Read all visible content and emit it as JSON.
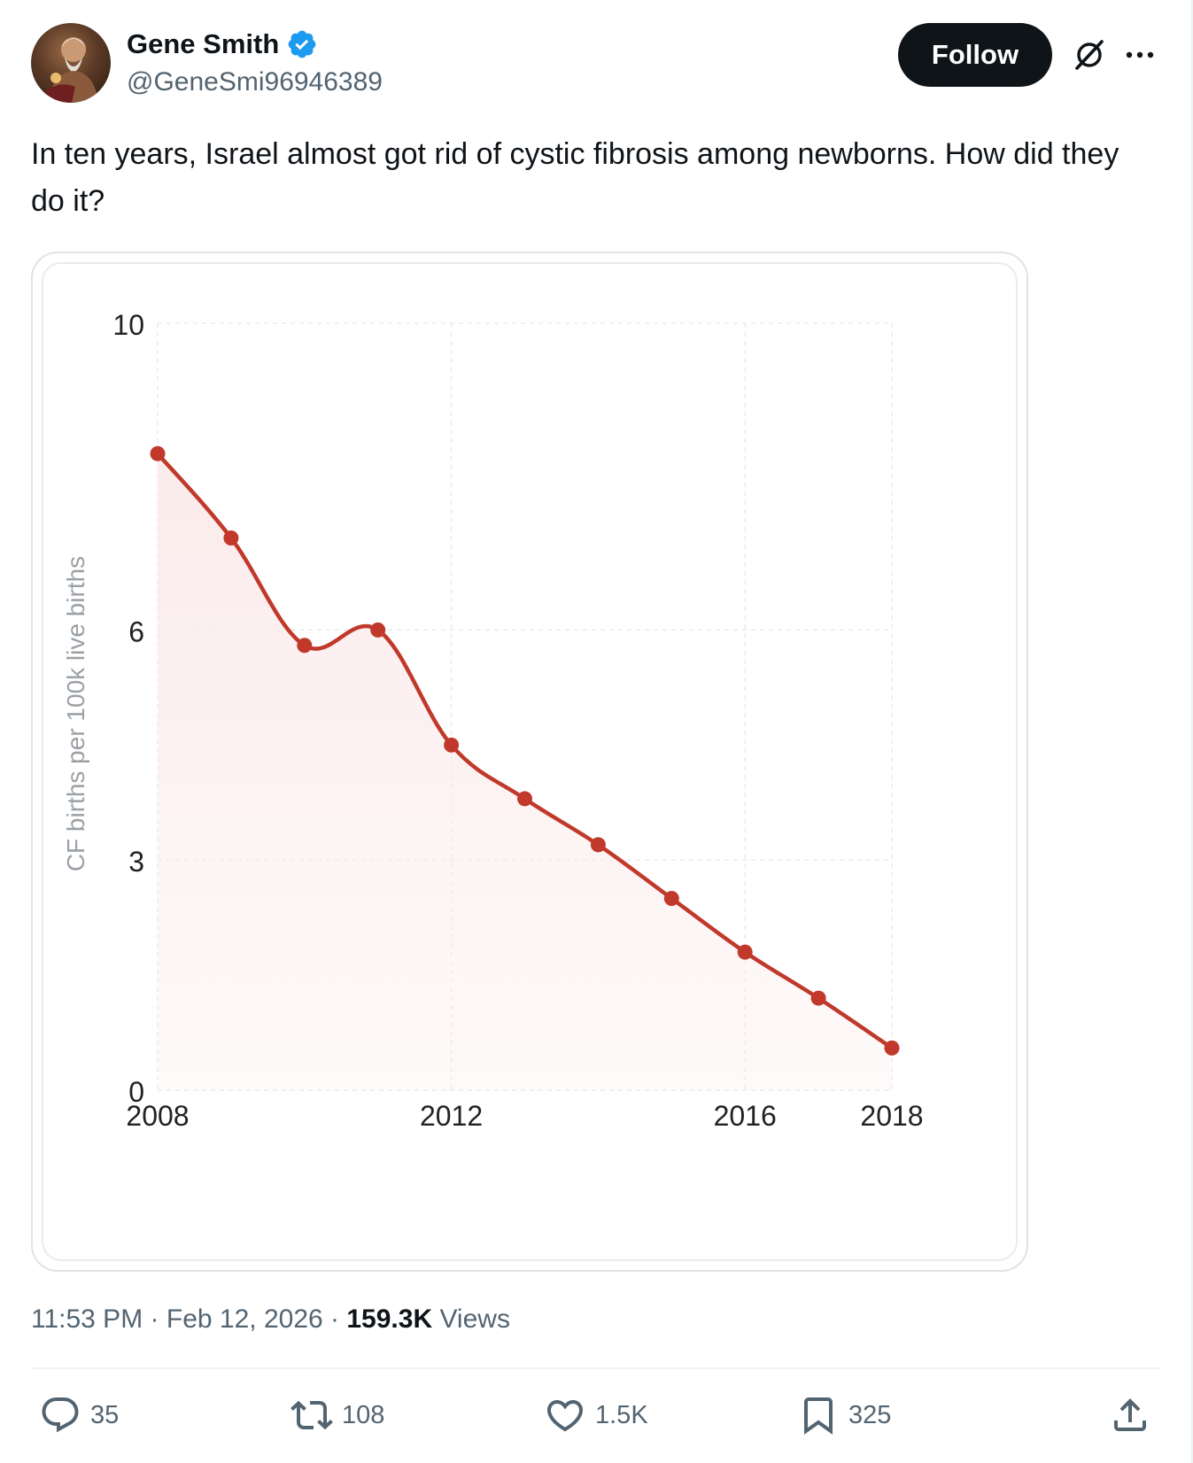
{
  "author": {
    "name": "Gene Smith",
    "handle": "@GeneSmi96946389",
    "verified": true
  },
  "header": {
    "follow_label": "Follow"
  },
  "tweet": {
    "text": "In ten years, Israel almost got rid of cystic fibrosis among newborns. How did they do it?"
  },
  "meta": {
    "time": "11:53 PM",
    "separator": "·",
    "date": "Feb 12, 2026",
    "views_count": "159.3K",
    "views_label": "Views"
  },
  "actions": {
    "replies": "35",
    "reposts": "108",
    "likes": "1.5K",
    "bookmarks": "325"
  },
  "colors": {
    "line": "#c0392b",
    "fill": "#fbeaea",
    "accent": "#1d9bf0",
    "grid": "#e6e6e6"
  },
  "icons": [
    "verified-badge-icon",
    "grok-icon",
    "more-icon",
    "reply-icon",
    "repost-icon",
    "like-icon",
    "bookmark-icon",
    "share-icon"
  ],
  "chart_data": {
    "type": "area",
    "title": "",
    "xlabel": "",
    "ylabel": "CF births per 100k live births",
    "x": [
      2008,
      2009,
      2010,
      2011,
      2012,
      2013,
      2014,
      2015,
      2016,
      2017,
      2018
    ],
    "values": [
      8.3,
      7.2,
      5.8,
      6.0,
      4.5,
      3.8,
      3.2,
      2.5,
      1.8,
      1.2,
      0.55
    ],
    "xlim": [
      2008,
      2018
    ],
    "ylim": [
      0,
      10
    ],
    "xticks": [
      2008,
      2012,
      2016,
      2018
    ],
    "yticks": [
      0,
      3,
      6,
      10
    ],
    "grid": true,
    "curve": "smooth"
  }
}
